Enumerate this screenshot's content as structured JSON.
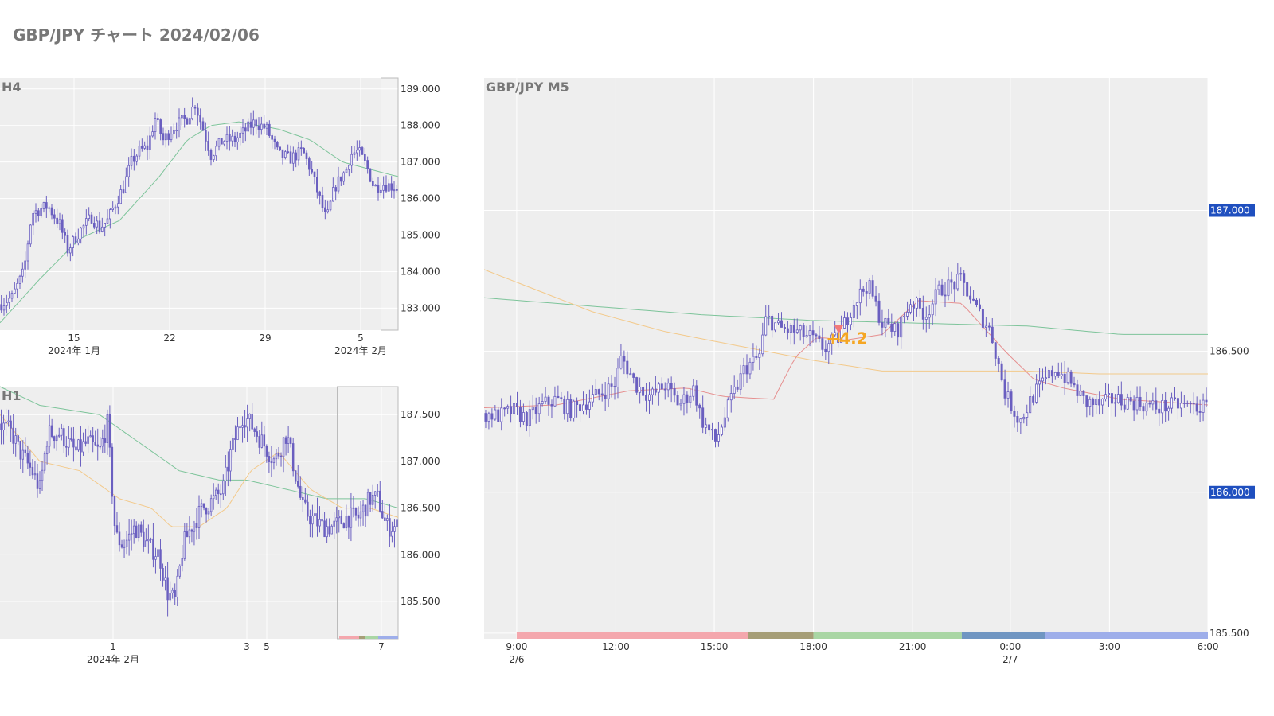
{
  "page": {
    "title": "GBP/JPY チャート 2024/02/06"
  },
  "colors": {
    "candle": "#6a5fc0",
    "plot_bg": "#eeeeee",
    "grid": "#ffffff",
    "ma_green": "#7dc49a",
    "ma_orange": "#f3c98a",
    "ma_red": "#e68f8f",
    "tag_bg": "#1f4fbf",
    "annotation": "#f5a623",
    "marker": "#f27a7a"
  },
  "chart_data": [
    {
      "panel": "H4",
      "type": "candlestick",
      "title": "H4",
      "ylim": [
        182.4,
        189.3
      ],
      "yticks": [
        "183.000",
        "184.000",
        "185.000",
        "186.000",
        "187.000",
        "188.000",
        "189.000"
      ],
      "ytick_values": [
        183,
        184,
        185,
        186,
        187,
        188,
        189
      ],
      "xticks": [
        "15",
        "22",
        "29",
        "5"
      ],
      "xsublabels": [
        "2024年 1月",
        "2024年 2月"
      ],
      "close_path": [
        [
          0,
          183.1
        ],
        [
          0.03,
          183.3
        ],
        [
          0.06,
          184.0
        ],
        [
          0.08,
          185.6
        ],
        [
          0.1,
          185.7
        ],
        [
          0.12,
          185.8
        ],
        [
          0.15,
          185.3
        ],
        [
          0.17,
          184.6
        ],
        [
          0.2,
          185.1
        ],
        [
          0.23,
          185.5
        ],
        [
          0.25,
          185.2
        ],
        [
          0.27,
          185.4
        ],
        [
          0.3,
          186.1
        ],
        [
          0.31,
          186.3
        ],
        [
          0.33,
          187.0
        ],
        [
          0.35,
          187.3
        ],
        [
          0.37,
          187.4
        ],
        [
          0.39,
          188.2
        ],
        [
          0.41,
          187.6
        ],
        [
          0.44,
          188.0
        ],
        [
          0.47,
          188.2
        ],
        [
          0.49,
          188.6
        ],
        [
          0.51,
          187.9
        ],
        [
          0.53,
          187.2
        ],
        [
          0.56,
          187.6
        ],
        [
          0.59,
          187.6
        ],
        [
          0.61,
          187.8
        ],
        [
          0.64,
          188.1
        ],
        [
          0.67,
          187.9
        ],
        [
          0.7,
          187.2
        ],
        [
          0.73,
          187.1
        ],
        [
          0.76,
          187.3
        ],
        [
          0.78,
          186.8
        ],
        [
          0.8,
          186.1
        ],
        [
          0.82,
          185.4
        ],
        [
          0.84,
          186.3
        ],
        [
          0.87,
          186.8
        ],
        [
          0.88,
          187.2
        ],
        [
          0.9,
          187.3
        ],
        [
          0.92,
          186.9
        ],
        [
          0.94,
          186.3
        ],
        [
          0.96,
          186.4
        ],
        [
          1.0,
          186.3
        ]
      ],
      "ma_green": [
        [
          0,
          182.6
        ],
        [
          0.1,
          183.8
        ],
        [
          0.2,
          184.9
        ],
        [
          0.3,
          185.4
        ],
        [
          0.4,
          186.6
        ],
        [
          0.47,
          187.6
        ],
        [
          0.53,
          188.0
        ],
        [
          0.6,
          188.1
        ],
        [
          0.7,
          187.9
        ],
        [
          0.78,
          187.6
        ],
        [
          0.86,
          187.0
        ],
        [
          0.93,
          186.8
        ],
        [
          1.0,
          186.6
        ]
      ]
    },
    {
      "panel": "H1",
      "type": "candlestick",
      "title": "H1",
      "ylim": [
        185.1,
        187.8
      ],
      "yticks": [
        "185.500",
        "186.000",
        "186.500",
        "187.000",
        "187.500"
      ],
      "ytick_values": [
        185.5,
        186.0,
        186.5,
        187.0,
        187.5
      ],
      "xticks": [
        "1",
        "3",
        "5",
        "7"
      ],
      "xsublabels": [
        "2024年 2月"
      ],
      "close_path": [
        [
          0,
          187.4
        ],
        [
          0.03,
          187.3
        ],
        [
          0.05,
          187.1
        ],
        [
          0.08,
          186.9
        ],
        [
          0.1,
          186.7
        ],
        [
          0.12,
          187.3
        ],
        [
          0.15,
          187.3
        ],
        [
          0.17,
          187.2
        ],
        [
          0.19,
          187.1
        ],
        [
          0.22,
          187.2
        ],
        [
          0.25,
          187.1
        ],
        [
          0.27,
          187.4
        ],
        [
          0.29,
          186.2
        ],
        [
          0.31,
          186.1
        ],
        [
          0.34,
          186.3
        ],
        [
          0.37,
          186.1
        ],
        [
          0.4,
          186.0
        ],
        [
          0.42,
          185.6
        ],
        [
          0.44,
          185.5
        ],
        [
          0.46,
          186.1
        ],
        [
          0.48,
          186.3
        ],
        [
          0.51,
          186.5
        ],
        [
          0.54,
          186.6
        ],
        [
          0.56,
          186.7
        ],
        [
          0.58,
          187.1
        ],
        [
          0.61,
          187.5
        ],
        [
          0.63,
          187.4
        ],
        [
          0.66,
          187.2
        ],
        [
          0.69,
          187.0
        ],
        [
          0.72,
          187.3
        ],
        [
          0.74,
          186.9
        ],
        [
          0.76,
          186.5
        ],
        [
          0.78,
          186.4
        ],
        [
          0.81,
          186.3
        ],
        [
          0.84,
          186.3
        ],
        [
          0.87,
          186.4
        ],
        [
          0.9,
          186.4
        ],
        [
          0.93,
          186.6
        ],
        [
          0.95,
          186.6
        ],
        [
          0.97,
          186.3
        ],
        [
          1.0,
          186.3
        ]
      ],
      "ma_green": [
        [
          0,
          187.8
        ],
        [
          0.1,
          187.6
        ],
        [
          0.25,
          187.5
        ],
        [
          0.35,
          187.2
        ],
        [
          0.45,
          186.9
        ],
        [
          0.55,
          186.8
        ],
        [
          0.62,
          186.8
        ],
        [
          0.72,
          186.7
        ],
        [
          0.82,
          186.6
        ],
        [
          0.92,
          186.6
        ],
        [
          1.0,
          186.5
        ]
      ],
      "ma_orange": [
        [
          0,
          187.5
        ],
        [
          0.1,
          187.0
        ],
        [
          0.2,
          186.9
        ],
        [
          0.3,
          186.6
        ],
        [
          0.38,
          186.5
        ],
        [
          0.43,
          186.3
        ],
        [
          0.5,
          186.3
        ],
        [
          0.57,
          186.5
        ],
        [
          0.63,
          186.9
        ],
        [
          0.7,
          187.1
        ],
        [
          0.78,
          186.7
        ],
        [
          0.86,
          186.5
        ],
        [
          0.93,
          186.5
        ],
        [
          1.0,
          186.4
        ]
      ]
    },
    {
      "panel": "M5",
      "type": "candlestick",
      "title": "GBP/JPY M5",
      "ylim": [
        185.48,
        187.47
      ],
      "yticks": [
        "185.500",
        "186.500"
      ],
      "ytick_values": [
        185.5,
        186.5
      ],
      "highlight_ticks": [
        "187.000",
        "186.000"
      ],
      "highlight_tick_values": [
        187.0,
        186.0
      ],
      "xticks": [
        "9:00",
        "12:00",
        "15:00",
        "18:00",
        "21:00",
        "0:00",
        "3:00",
        "6:00"
      ],
      "xsublabels": [
        "2/6",
        "2/7"
      ],
      "close_path": [
        [
          0,
          186.28
        ],
        [
          0.02,
          186.27
        ],
        [
          0.04,
          186.29
        ],
        [
          0.06,
          186.26
        ],
        [
          0.08,
          186.31
        ],
        [
          0.1,
          186.33
        ],
        [
          0.12,
          186.29
        ],
        [
          0.14,
          186.32
        ],
        [
          0.16,
          186.35
        ],
        [
          0.18,
          186.38
        ],
        [
          0.19,
          186.48
        ],
        [
          0.21,
          186.38
        ],
        [
          0.23,
          186.34
        ],
        [
          0.25,
          186.38
        ],
        [
          0.27,
          186.31
        ],
        [
          0.29,
          186.37
        ],
        [
          0.3,
          186.26
        ],
        [
          0.32,
          186.18
        ],
        [
          0.34,
          186.32
        ],
        [
          0.36,
          186.44
        ],
        [
          0.38,
          186.48
        ],
        [
          0.39,
          186.62
        ],
        [
          0.41,
          186.58
        ],
        [
          0.43,
          186.57
        ],
        [
          0.45,
          186.55
        ],
        [
          0.47,
          186.51
        ],
        [
          0.49,
          186.55
        ],
        [
          0.51,
          186.67
        ],
        [
          0.53,
          186.74
        ],
        [
          0.55,
          186.6
        ],
        [
          0.57,
          186.57
        ],
        [
          0.59,
          186.68
        ],
        [
          0.61,
          186.63
        ],
        [
          0.63,
          186.72
        ],
        [
          0.66,
          186.75
        ],
        [
          0.68,
          186.65
        ],
        [
          0.7,
          186.57
        ],
        [
          0.72,
          186.35
        ],
        [
          0.74,
          186.25
        ],
        [
          0.76,
          186.35
        ],
        [
          0.79,
          186.44
        ],
        [
          0.81,
          186.39
        ],
        [
          0.83,
          186.32
        ],
        [
          0.85,
          186.31
        ],
        [
          0.87,
          186.33
        ],
        [
          0.9,
          186.32
        ],
        [
          0.93,
          186.3
        ],
        [
          0.96,
          186.31
        ],
        [
          1.0,
          186.3
        ]
      ],
      "ma_green": [
        [
          0,
          186.69
        ],
        [
          0.15,
          186.66
        ],
        [
          0.3,
          186.63
        ],
        [
          0.45,
          186.61
        ],
        [
          0.6,
          186.6
        ],
        [
          0.75,
          186.59
        ],
        [
          0.88,
          186.56
        ],
        [
          1.0,
          186.56
        ]
      ],
      "ma_orange": [
        [
          0,
          186.79
        ],
        [
          0.08,
          186.71
        ],
        [
          0.15,
          186.64
        ],
        [
          0.25,
          186.57
        ],
        [
          0.35,
          186.52
        ],
        [
          0.45,
          186.47
        ],
        [
          0.55,
          186.43
        ],
        [
          0.65,
          186.43
        ],
        [
          0.75,
          186.43
        ],
        [
          0.85,
          186.42
        ],
        [
          1.0,
          186.42
        ]
      ],
      "ma_red": [
        [
          0,
          186.3
        ],
        [
          0.1,
          186.31
        ],
        [
          0.2,
          186.36
        ],
        [
          0.28,
          186.37
        ],
        [
          0.33,
          186.34
        ],
        [
          0.4,
          186.33
        ],
        [
          0.43,
          186.48
        ],
        [
          0.46,
          186.55
        ],
        [
          0.5,
          186.54
        ],
        [
          0.55,
          186.56
        ],
        [
          0.6,
          186.68
        ],
        [
          0.66,
          186.67
        ],
        [
          0.72,
          186.5
        ],
        [
          0.76,
          186.4
        ],
        [
          0.8,
          186.37
        ],
        [
          0.88,
          186.33
        ],
        [
          1.0,
          186.31
        ]
      ],
      "annotation": {
        "text": "+4.2",
        "x_frac": 0.49,
        "y_value": 186.48
      },
      "sessions": [
        {
          "from": 0.045,
          "to": 0.365,
          "color": "#f4a7ad"
        },
        {
          "from": 0.365,
          "to": 0.455,
          "color": "#a69e77"
        },
        {
          "from": 0.455,
          "to": 0.66,
          "color": "#a9d6a4"
        },
        {
          "from": 0.66,
          "to": 0.775,
          "color": "#7096c2"
        },
        {
          "from": 0.775,
          "to": 1.0,
          "color": "#9eaeea"
        }
      ]
    }
  ]
}
